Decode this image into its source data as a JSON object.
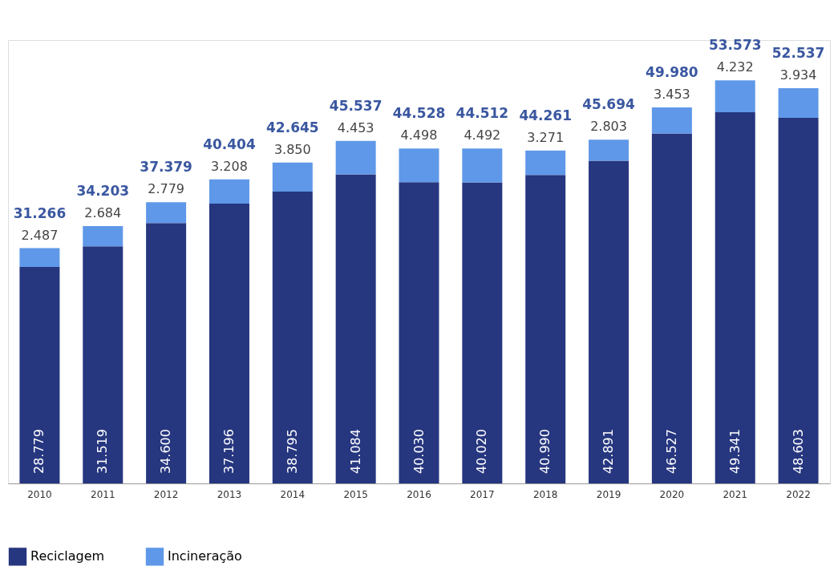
{
  "chart_data": {
    "type": "bar",
    "stacked": true,
    "legend": "bottom",
    "categories": [
      "2010",
      "2011",
      "2012",
      "2013",
      "2014",
      "2015",
      "2016",
      "2017",
      "2018",
      "2019",
      "2020",
      "2021",
      "2022"
    ],
    "series": [
      {
        "name": "Reciclagem",
        "color": "#26367f",
        "values": [
          28779,
          31519,
          34600,
          37196,
          38795,
          41084,
          40030,
          40020,
          40990,
          42891,
          46527,
          49341,
          48603
        ],
        "value_labels": [
          "28.779",
          "31.519",
          "34.600",
          "37.196",
          "38.795",
          "41.084",
          "40.030",
          "40.020",
          "40.990",
          "42.891",
          "46.527",
          "49.341",
          "48.603"
        ]
      },
      {
        "name": "Incineração",
        "color": "#5f98e8",
        "values": [
          2487,
          2684,
          2779,
          3208,
          3850,
          4453,
          4498,
          4492,
          3271,
          2803,
          3453,
          4232,
          3934
        ],
        "value_labels": [
          "2.487",
          "2.684",
          "2.779",
          "3.208",
          "3.850",
          "4.453",
          "4.498",
          "4.492",
          "3.271",
          "2.803",
          "3.453",
          "4.232",
          "3.934"
        ]
      }
    ],
    "totals": [
      "31.266",
      "34.203",
      "37.379",
      "40.404",
      "42.645",
      "45.537",
      "44.528",
      "44.512",
      "44.261",
      "45.694",
      "49.980",
      "53.573",
      "52.537"
    ]
  }
}
